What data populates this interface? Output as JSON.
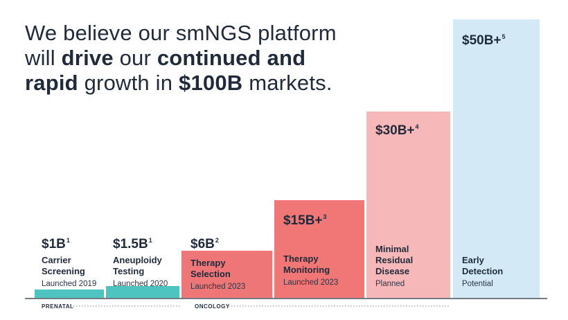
{
  "headline": {
    "p1": "We believe our smNGS platform",
    "p2a": "will ",
    "p2b": "drive",
    "p2c": " our ",
    "p2d": "continued and",
    "p3a": "rapid",
    "p3b": " growth in ",
    "p3c": "$100B",
    "p3d": " markets."
  },
  "chart_data": {
    "type": "bar",
    "title": "",
    "xlabel": "",
    "ylabel": "",
    "ylim": [
      0,
      50
    ],
    "categories": [
      "Carrier Screening",
      "Aneuploidy Testing",
      "Therapy Selection",
      "Therapy Monitoring",
      "Minimal Residual Disease",
      "Early Detection"
    ],
    "values": [
      1,
      1.5,
      6,
      15,
      30,
      50
    ],
    "value_labels": [
      "$1B",
      "$1.5B",
      "$6B",
      "$15B+",
      "$30B+",
      "$50B+"
    ],
    "footnotes": [
      "1",
      "1",
      "2",
      "3",
      "4",
      "5"
    ],
    "status": [
      "Launched 2019",
      "Launched 2020",
      "Launched 2023",
      "Launched 2023",
      "Planned",
      "Potential"
    ],
    "colors": [
      "#4dc4c0",
      "#4dc4c0",
      "#ef7676",
      "#f07775",
      "#f7b8ba",
      "#d3e9f6"
    ],
    "groups": [
      {
        "name": "PRENATAL",
        "categories": [
          "Carrier Screening",
          "Aneuploidy Testing"
        ]
      },
      {
        "name": "ONCOLOGY",
        "categories": [
          "Therapy Selection",
          "Therapy Monitoring",
          "Minimal Residual Disease",
          "Early Detection"
        ]
      }
    ]
  },
  "labels": [
    {
      "value": "$1B",
      "fn": "1",
      "name": "Carrier\nScreening",
      "status": "Launched 2019"
    },
    {
      "value": "$1.5B",
      "fn": "1",
      "name": "Aneuploidy\nTesting",
      "status": "Launched 2020"
    },
    {
      "value": "$6B",
      "fn": "2",
      "name": "Therapy\nSelection",
      "status": "Launched 2023"
    },
    {
      "value": "$15B+",
      "fn": "3",
      "name": "Therapy\nMonitoring",
      "status": "Launched 2023"
    },
    {
      "value": "$30B+",
      "fn": "4",
      "name": "Minimal\nResidual\nDisease",
      "status": "Planned"
    },
    {
      "value": "$50B+",
      "fn": "5",
      "name": "Early\nDetection",
      "status": "Potential"
    }
  ],
  "footer": {
    "prenatal": "PRENATAL",
    "oncology": "ONCOLOGY"
  }
}
